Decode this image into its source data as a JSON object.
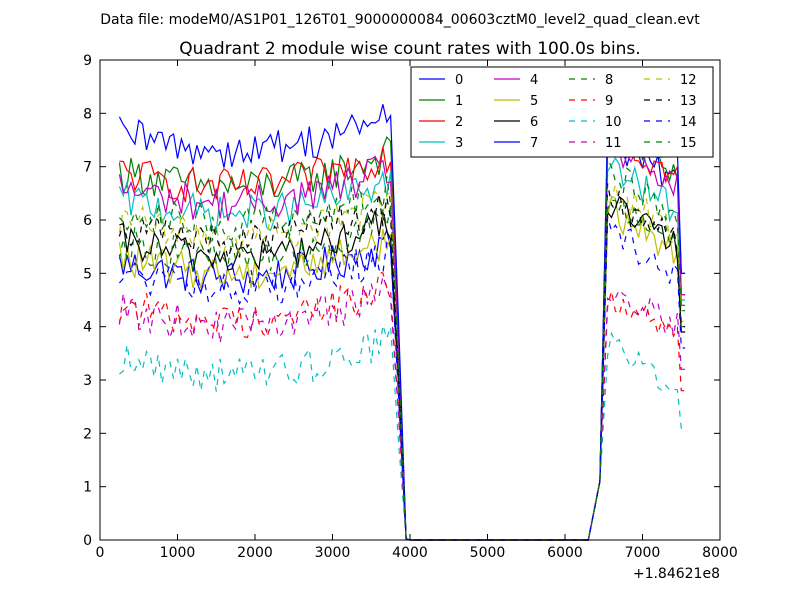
{
  "chart_data": {
    "type": "line",
    "suptitle": "Data file: modeM0/AS1P01_126T01_9000000084_00603cztM0_level2_quad_clean.evt",
    "title": "Quadrant 2 module wise count rates with 100.0s bins.",
    "xlabel": "",
    "ylabel": "",
    "x_offset_label": "+1.84621e8",
    "xlim": [
      0,
      8000
    ],
    "ylim": [
      0,
      9
    ],
    "xticks": [
      0,
      1000,
      2000,
      3000,
      4000,
      5000,
      6000,
      7000,
      8000
    ],
    "yticks": [
      0,
      1,
      2,
      3,
      4,
      5,
      6,
      7,
      8,
      9
    ],
    "grid": false,
    "legend_position": "top-right",
    "segments": [
      {
        "x_start": 250,
        "x_end": 3750
      },
      {
        "x_start": 6550,
        "x_end": 7550
      }
    ],
    "gap": {
      "x": [
        3850,
        3950,
        6350,
        6450
      ]
    },
    "series": [
      {
        "name": "0",
        "color": "#0000ff",
        "dash": "solid",
        "base_a": 5.2,
        "base_b": 7.5,
        "end_b": 5.0
      },
      {
        "name": "1",
        "color": "#008000",
        "dash": "solid",
        "base_a": 6.9,
        "base_b": 7.7,
        "end_b": 4.4
      },
      {
        "name": "2",
        "color": "#ff0000",
        "dash": "solid",
        "base_a": 6.9,
        "base_b": 7.6,
        "end_b": 4.6
      },
      {
        "name": "3",
        "color": "#00bfbf",
        "dash": "solid",
        "base_a": 6.4,
        "base_b": 7.0,
        "end_b": 4.5
      },
      {
        "name": "4",
        "color": "#bf00bf",
        "dash": "solid",
        "base_a": 6.6,
        "base_b": 7.4,
        "end_b": 4.6
      },
      {
        "name": "5",
        "color": "#bfbf00",
        "dash": "solid",
        "base_a": 5.3,
        "base_b": 6.2,
        "end_b": 3.9
      },
      {
        "name": "6",
        "color": "#000000",
        "dash": "solid",
        "base_a": 5.6,
        "base_b": 6.3,
        "end_b": 3.9
      },
      {
        "name": "7",
        "color": "#0000ff",
        "dash": "solid",
        "base_a": 7.6,
        "base_b": 8.0,
        "end_b": 5.0
      },
      {
        "name": "8",
        "color": "#008000",
        "dash": "dashed",
        "base_a": 5.6,
        "base_b": 6.4,
        "end_b": 4.0
      },
      {
        "name": "9",
        "color": "#ff0000",
        "dash": "dashed",
        "base_a": 4.4,
        "base_b": 4.6,
        "end_b": 2.8
      },
      {
        "name": "10",
        "color": "#00bfbf",
        "dash": "dashed",
        "base_a": 3.4,
        "base_b": 3.7,
        "end_b": 2.1
      },
      {
        "name": "11",
        "color": "#bf00bf",
        "dash": "dashed",
        "base_a": 4.3,
        "base_b": 4.8,
        "end_b": 3.2
      },
      {
        "name": "12",
        "color": "#bfbf00",
        "dash": "dashed",
        "base_a": 6.0,
        "base_b": 6.6,
        "end_b": 4.1
      },
      {
        "name": "13",
        "color": "#000000",
        "dash": "dashed",
        "base_a": 5.9,
        "base_b": 6.4,
        "end_b": 4.0
      },
      {
        "name": "14",
        "color": "#0000ff",
        "dash": "dashed",
        "base_a": 5.0,
        "base_b": 5.8,
        "end_b": 3.6
      },
      {
        "name": "15",
        "color": "#008000",
        "dash": "dashed",
        "base_a": 6.2,
        "base_b": 6.9,
        "end_b": 4.3
      }
    ]
  }
}
